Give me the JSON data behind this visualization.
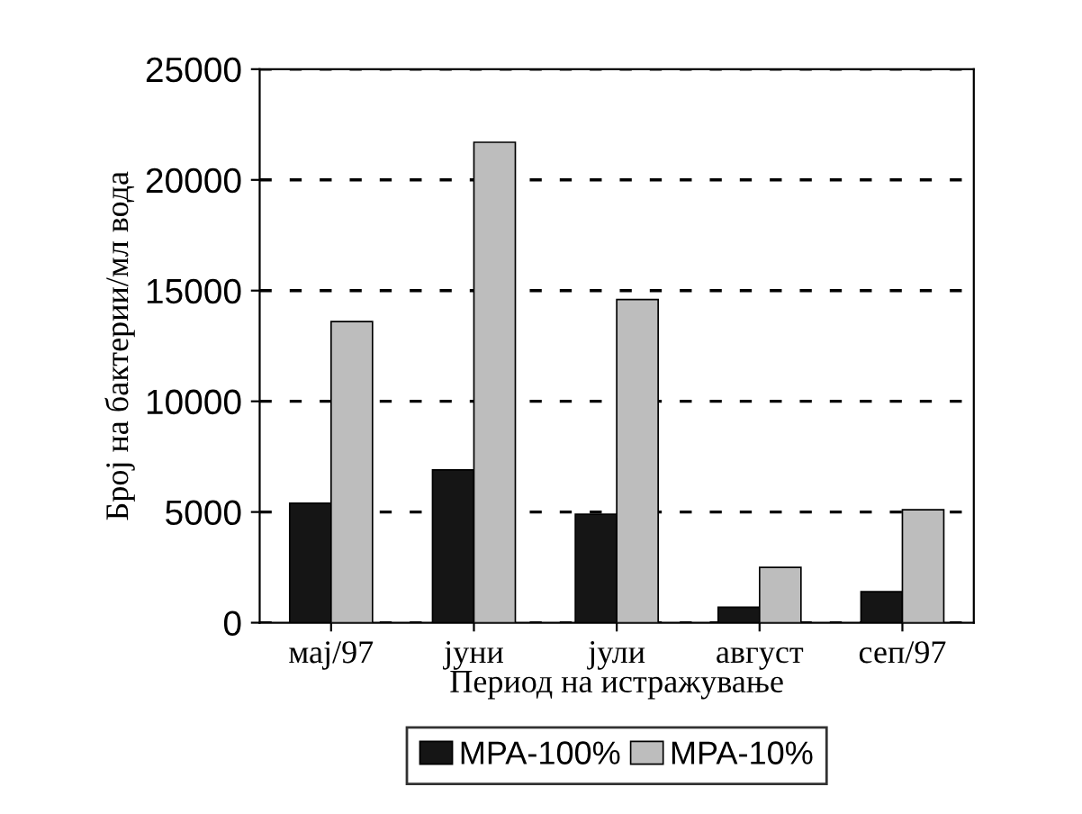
{
  "chart_data": {
    "type": "bar",
    "xlabel": "Период на истражување",
    "ylabel": "Број на бактерии/мл вода",
    "categories": [
      "мај/97",
      "јуни",
      "јули",
      "август",
      "сеп/97"
    ],
    "series": [
      {
        "name": "MPA-100%",
        "color": "#151515",
        "values": [
          5400,
          6900,
          4900,
          700,
          1400
        ]
      },
      {
        "name": "MPA-10%",
        "color": "#bdbdbd",
        "values": [
          13600,
          21700,
          14600,
          2500,
          5100
        ]
      }
    ],
    "ylim": [
      0,
      25000
    ],
    "yticks": [
      0,
      5000,
      10000,
      15000,
      20000,
      25000
    ],
    "grid": "y",
    "line_style": "dashed",
    "legend": "bottom"
  }
}
